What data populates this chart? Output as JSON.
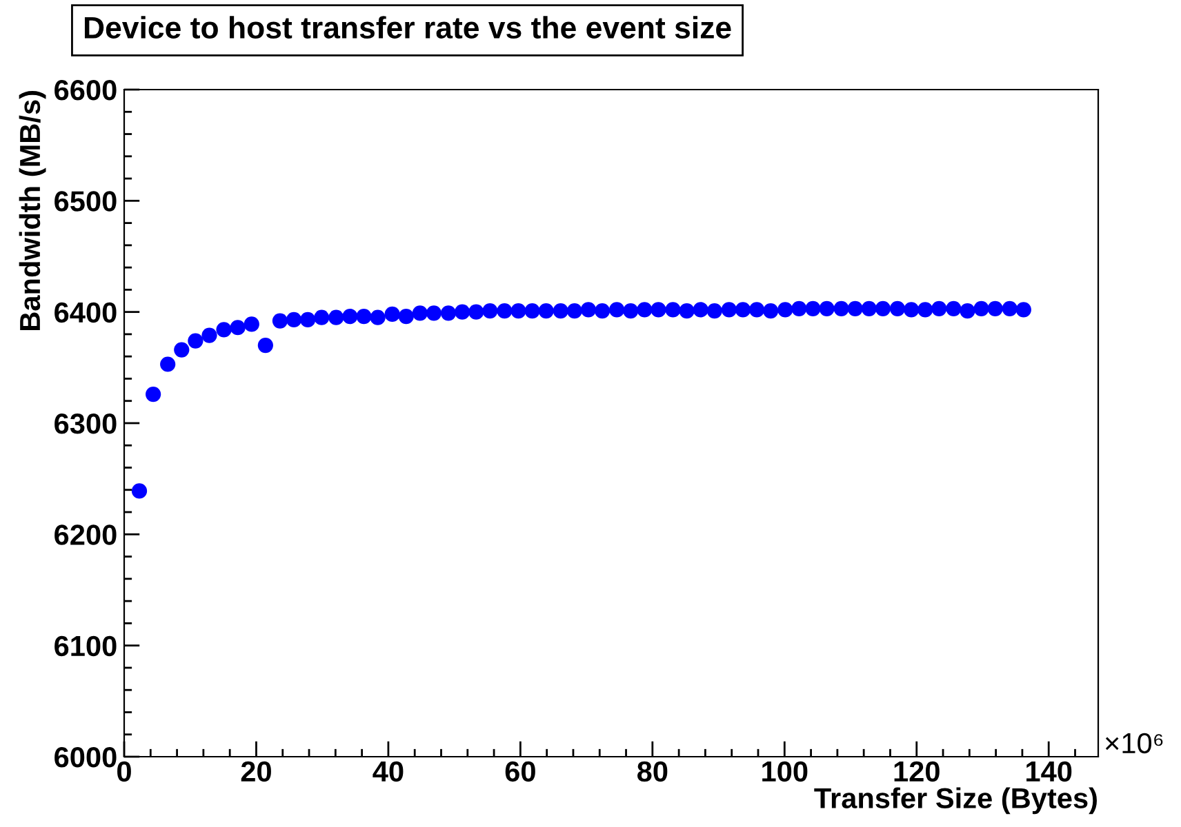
{
  "chart_data": {
    "type": "scatter",
    "title": "Device to host transfer rate vs the event size",
    "xlabel": "Transfer Size (Bytes)",
    "ylabel": "Bandwidth (MB/s)",
    "annotations": [
      "×10⁶"
    ],
    "x": [
      2.3,
      4.4,
      6.6,
      8.7,
      10.8,
      12.9,
      15.1,
      17.2,
      19.3,
      21.4,
      23.6,
      25.7,
      27.8,
      29.9,
      32.1,
      34.2,
      36.3,
      38.4,
      40.6,
      42.7,
      44.8,
      46.9,
      49.1,
      51.2,
      53.3,
      55.4,
      57.6,
      59.7,
      61.8,
      63.9,
      66.1,
      68.2,
      70.3,
      72.4,
      74.6,
      76.7,
      78.8,
      80.9,
      83.1,
      85.2,
      87.3,
      89.4,
      91.6,
      93.7,
      95.8,
      97.9,
      100.1,
      102.2,
      104.3,
      106.4,
      108.6,
      110.7,
      112.8,
      114.9,
      117.1,
      119.2,
      121.3,
      123.4,
      125.6,
      127.7,
      129.8,
      131.9,
      134.1,
      136.2
    ],
    "series": [
      {
        "color": "#0000ff",
        "values": [
          6239,
          6326,
          6353,
          6366,
          6374,
          6379,
          6384,
          6386,
          6389,
          6370,
          6392,
          6393,
          6393,
          6395,
          6395,
          6396,
          6396,
          6395,
          6398,
          6396,
          6399,
          6399,
          6399,
          6400,
          6400,
          6401,
          6401,
          6401,
          6401,
          6401,
          6401,
          6401,
          6402,
          6401,
          6402,
          6401,
          6402,
          6402,
          6402,
          6401,
          6402,
          6401,
          6402,
          6402,
          6402,
          6401,
          6402,
          6403,
          6403,
          6403,
          6403,
          6403,
          6403,
          6403,
          6403,
          6402,
          6402,
          6403,
          6403,
          6401,
          6403,
          6403,
          6403,
          6402
        ]
      }
    ],
    "xlim": [
      0,
      147.5
    ],
    "xticks": [
      0,
      20,
      40,
      60,
      80,
      100,
      120,
      140
    ],
    "ylim": [
      6000,
      6600
    ],
    "yticks": [
      6000,
      6100,
      6200,
      6300,
      6400,
      6500,
      6600
    ],
    "marker": "circle",
    "grid": false,
    "legend": false
  }
}
